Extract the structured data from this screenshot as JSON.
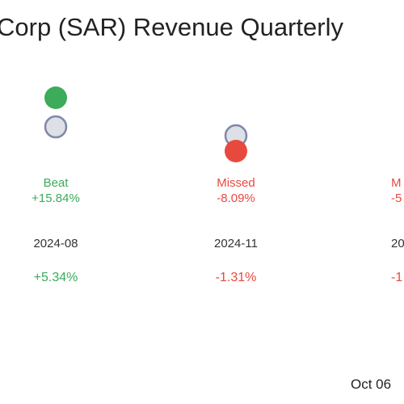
{
  "colors": {
    "beat": "#3cab5a",
    "missed": "#e8493f",
    "estimate_fill": "#dde0e6",
    "estimate_stroke": "#8088a8"
  },
  "chart_data": {
    "type": "scatter",
    "title": "Corp (SAR) Revenue Quarterly",
    "columns": [
      {
        "period": "2024-08",
        "status": "Beat",
        "surprise": "+15.84%",
        "change": "+5.34%",
        "actual_rank": 1,
        "estimate_rank": 0
      },
      {
        "period": "2024-11",
        "status": "Missed",
        "surprise": "-8.09%",
        "change": "-1.31%",
        "actual_rank": 0,
        "estimate_rank": 1
      },
      {
        "period": "20",
        "status": "M",
        "surprise": "-5",
        "change": "-1",
        "actual_rank": null,
        "estimate_rank": null
      }
    ]
  },
  "footer": {
    "date": "Oct 06"
  }
}
